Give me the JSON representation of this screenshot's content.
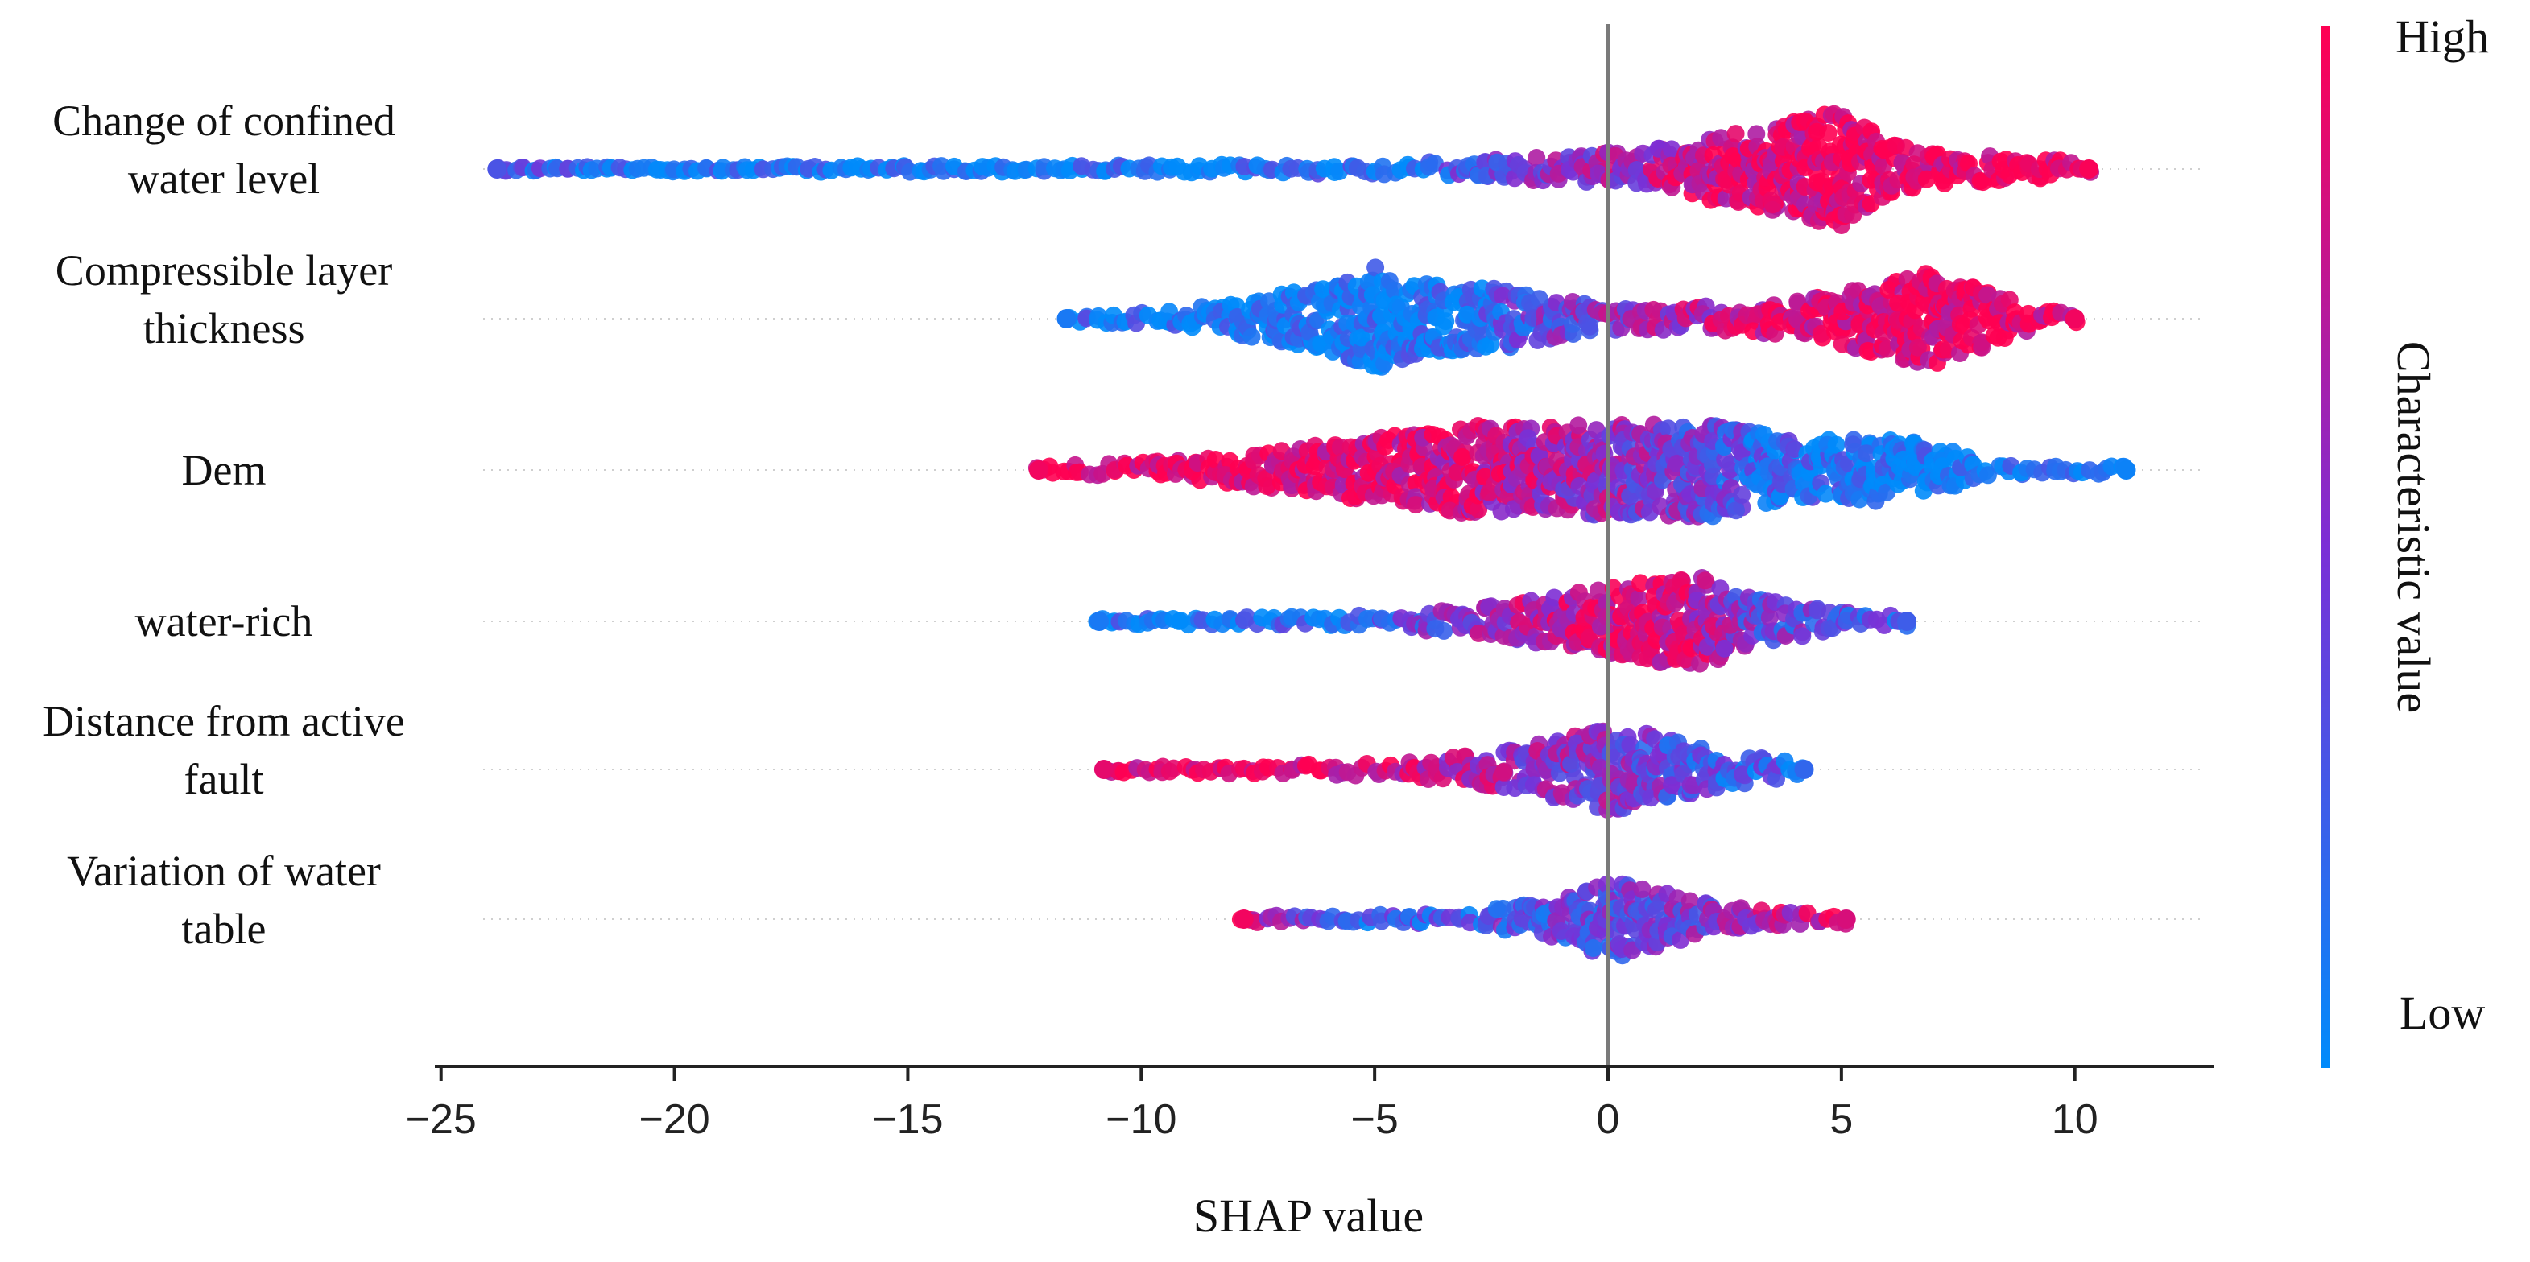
{
  "chart_data": {
    "type": "beeswarm",
    "xlabel": "SHAP value",
    "xlim": [
      -25.5,
      13
    ],
    "xticks": [
      -25,
      -20,
      -15,
      -10,
      -5,
      0,
      5,
      10
    ],
    "xtick_labels": [
      "−25",
      "−20",
      "−15",
      "−10",
      "−5",
      "0",
      "5",
      "10"
    ],
    "colorbar": {
      "label": "Characteristic value",
      "high": "High",
      "low": "Low",
      "high_color": "#ff0052",
      "mid_color": "#7b2fd6",
      "low_color": "#008bfb"
    },
    "features": [
      {
        "label_lines": [
          "Change of confined",
          "water level"
        ],
        "min": -23.8,
        "max": 10.3,
        "density": [
          [
            -23.8,
            0.2
          ],
          [
            -20,
            0.2
          ],
          [
            -15,
            0.25
          ],
          [
            -10,
            0.3
          ],
          [
            -5,
            0.4
          ],
          [
            -2,
            0.8
          ],
          [
            1,
            1.5
          ],
          [
            3,
            3.0
          ],
          [
            5,
            4.5
          ],
          [
            6,
            2.0
          ],
          [
            7,
            1.2
          ],
          [
            9,
            0.9
          ],
          [
            10.3,
            0.5
          ]
        ],
        "color": [
          [
            -23.8,
            0.3
          ],
          [
            -20,
            0.05
          ],
          [
            -10,
            0.05
          ],
          [
            -5,
            0.15
          ],
          [
            -2,
            0.4
          ],
          [
            0,
            0.6
          ],
          [
            2,
            0.85
          ],
          [
            5,
            0.95
          ],
          [
            10.3,
            0.98
          ]
        ]
      },
      {
        "label_lines": [
          "Compressible layer",
          "thickness"
        ],
        "min": -11.6,
        "max": 10.0,
        "density": [
          [
            -11.6,
            0.2
          ],
          [
            -10,
            0.5
          ],
          [
            -8,
            1.2
          ],
          [
            -6,
            2.5
          ],
          [
            -5,
            4.0
          ],
          [
            -4,
            2.8
          ],
          [
            -2,
            2.2
          ],
          [
            0,
            0.9
          ],
          [
            3,
            1.0
          ],
          [
            5,
            2.0
          ],
          [
            7,
            3.8
          ],
          [
            8,
            2.2
          ],
          [
            9,
            1.0
          ],
          [
            10,
            0.4
          ]
        ],
        "color": [
          [
            -11.6,
            0.1
          ],
          [
            -8,
            0.05
          ],
          [
            -5,
            0.05
          ],
          [
            -3,
            0.15
          ],
          [
            -1,
            0.45
          ],
          [
            1,
            0.6
          ],
          [
            3,
            0.8
          ],
          [
            5,
            0.9
          ],
          [
            7,
            0.95
          ],
          [
            10,
            0.95
          ]
        ]
      },
      {
        "label_lines": [
          "Dem"
        ],
        "min": -12.2,
        "max": 11.1,
        "density": [
          [
            -12.2,
            0.3
          ],
          [
            -10,
            0.6
          ],
          [
            -7,
            1.5
          ],
          [
            -5,
            2.5
          ],
          [
            -3,
            3.5
          ],
          [
            0,
            3.5
          ],
          [
            2,
            3.8
          ],
          [
            4,
            2.3
          ],
          [
            6,
            2.5
          ],
          [
            7.5,
            1.5
          ],
          [
            8,
            0.5
          ],
          [
            9,
            0.3
          ],
          [
            10.5,
            0.3
          ],
          [
            11.1,
            0.3
          ]
        ],
        "color": [
          [
            -12.2,
            0.95
          ],
          [
            -8,
            0.95
          ],
          [
            -4,
            0.85
          ],
          [
            -2,
            0.75
          ],
          [
            0,
            0.6
          ],
          [
            2,
            0.4
          ],
          [
            4,
            0.15
          ],
          [
            6,
            0.05
          ],
          [
            11.1,
            0.05
          ]
        ]
      },
      {
        "label_lines": [
          "water-rich"
        ],
        "min": -10.9,
        "max": 6.4,
        "density": [
          [
            -10.9,
            0.2
          ],
          [
            -8,
            0.3
          ],
          [
            -5,
            0.5
          ],
          [
            -3,
            1.0
          ],
          [
            -1,
            2.0
          ],
          [
            1,
            3.2
          ],
          [
            2,
            3.4
          ],
          [
            3,
            2.0
          ],
          [
            4,
            1.2
          ],
          [
            5,
            0.7
          ],
          [
            6.4,
            0.4
          ]
        ],
        "color": [
          [
            -10.9,
            0.1
          ],
          [
            -6,
            0.15
          ],
          [
            -3,
            0.5
          ],
          [
            -1,
            0.8
          ],
          [
            1,
            0.85
          ],
          [
            2,
            0.75
          ],
          [
            3,
            0.45
          ],
          [
            5,
            0.35
          ],
          [
            6.4,
            0.25
          ]
        ]
      },
      {
        "label_lines": [
          "Distance from active",
          "fault"
        ],
        "min": -10.8,
        "max": 4.2,
        "density": [
          [
            -10.8,
            0.3
          ],
          [
            -9,
            0.3
          ],
          [
            -6,
            0.4
          ],
          [
            -4,
            0.7
          ],
          [
            -2,
            1.5
          ],
          [
            0,
            3.2
          ],
          [
            1,
            2.8
          ],
          [
            2,
            1.8
          ],
          [
            3,
            1.0
          ],
          [
            4.2,
            0.5
          ]
        ],
        "color": [
          [
            -10.8,
            0.9
          ],
          [
            -8,
            0.95
          ],
          [
            -5,
            0.85
          ],
          [
            -2,
            0.6
          ],
          [
            0,
            0.55
          ],
          [
            1,
            0.4
          ],
          [
            2,
            0.3
          ],
          [
            4.2,
            0.2
          ]
        ]
      },
      {
        "label_lines": [
          "Variation of water",
          "table"
        ],
        "min": -7.8,
        "max": 5.1,
        "density": [
          [
            -7.8,
            0.3
          ],
          [
            -6,
            0.3
          ],
          [
            -3,
            0.5
          ],
          [
            -1,
            1.5
          ],
          [
            0,
            3.2
          ],
          [
            1,
            2.2
          ],
          [
            2,
            1.3
          ],
          [
            3,
            0.8
          ],
          [
            5.1,
            0.4
          ]
        ],
        "color": [
          [
            -7.8,
            0.95
          ],
          [
            -6,
            0.2
          ],
          [
            -4,
            0.25
          ],
          [
            -2,
            0.35
          ],
          [
            0,
            0.35
          ],
          [
            2,
            0.5
          ],
          [
            4,
            0.75
          ],
          [
            5.1,
            0.85
          ]
        ]
      }
    ]
  }
}
